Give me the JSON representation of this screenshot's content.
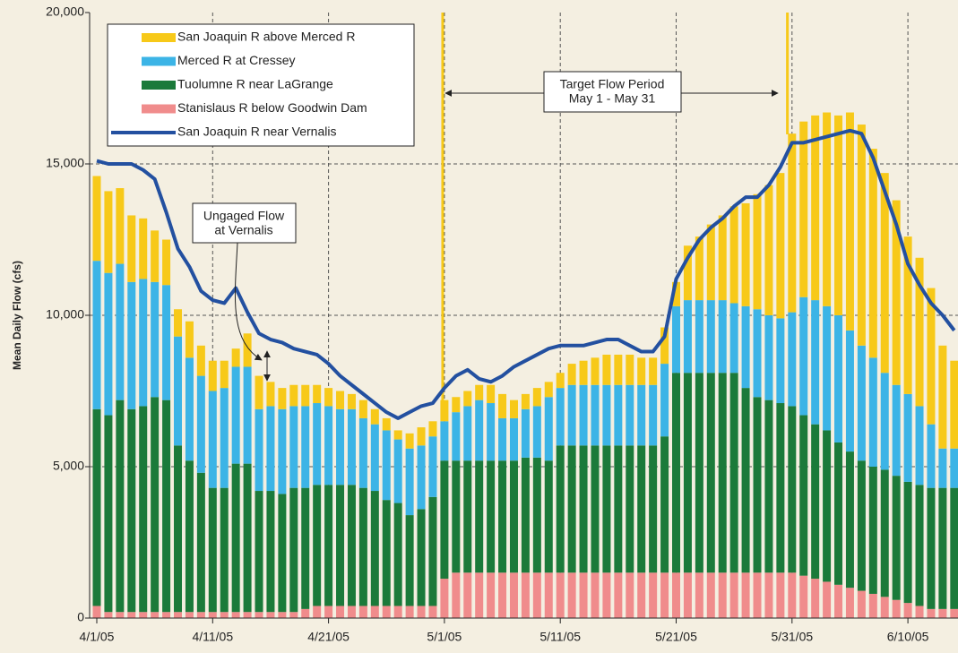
{
  "chart_data": {
    "type": "bar",
    "stacked": true,
    "y_label": "Mean Daily Flow (cfs)",
    "categories": [
      "4/1/05",
      null,
      null,
      null,
      null,
      null,
      null,
      null,
      null,
      null,
      "4/11/05",
      null,
      null,
      null,
      null,
      null,
      null,
      null,
      null,
      null,
      "4/21/05",
      null,
      null,
      null,
      null,
      null,
      null,
      null,
      null,
      null,
      "5/1/05",
      null,
      null,
      null,
      null,
      null,
      null,
      null,
      null,
      null,
      "5/11/05",
      null,
      null,
      null,
      null,
      null,
      null,
      null,
      null,
      null,
      "5/21/05",
      null,
      null,
      null,
      null,
      null,
      null,
      null,
      null,
      null,
      "5/31/05",
      null,
      null,
      null,
      null,
      null,
      null,
      null,
      null,
      null,
      "6/10/05",
      null,
      null,
      null,
      null
    ],
    "ylim": [
      0,
      20000
    ],
    "yticks": [
      0,
      {
        "value": 5000,
        "label": "5,000"
      },
      {
        "value": 10000,
        "label": "10,000"
      },
      {
        "value": 15000,
        "label": "15,000"
      },
      {
        "value": 20000,
        "label": "20,000"
      }
    ],
    "grid": true,
    "legend": "upper left",
    "series": [
      {
        "name": "San Joaquin R above Merced R",
        "color": "#f7c919",
        "values": [
          2800,
          2700,
          2500,
          2200,
          2000,
          1700,
          1500,
          900,
          1200,
          1000,
          1000,
          900,
          600,
          1100,
          1100,
          800,
          700,
          700,
          700,
          600,
          600,
          600,
          500,
          600,
          500,
          400,
          300,
          500,
          600,
          500,
          700,
          500,
          500,
          500,
          600,
          800,
          600,
          500,
          600,
          500,
          500,
          700,
          800,
          900,
          1000,
          1000,
          1000,
          900,
          900,
          1200,
          800,
          1800,
          2100,
          2500,
          2800,
          3200,
          3400,
          3800,
          4300,
          4800,
          5900,
          5800,
          6100,
          6400,
          6600,
          7200,
          7300,
          6900,
          6600,
          6100,
          5200,
          4900,
          4500,
          3400,
          2900
        ]
      },
      {
        "name": "Merced R at Cressey",
        "color": "#3cb4e6",
        "values": [
          4900,
          4700,
          4500,
          4200,
          4200,
          3800,
          3800,
          3600,
          3400,
          3200,
          3200,
          3300,
          3200,
          3200,
          2700,
          2800,
          2800,
          2700,
          2700,
          2700,
          2600,
          2500,
          2500,
          2300,
          2200,
          2300,
          2100,
          2200,
          2100,
          2000,
          1300,
          1600,
          1800,
          2000,
          1900,
          1400,
          1400,
          1600,
          1700,
          2100,
          1900,
          2000,
          2000,
          2000,
          2000,
          2000,
          2000,
          2000,
          2000,
          2400,
          2200,
          2400,
          2400,
          2400,
          2400,
          2300,
          2700,
          2900,
          2800,
          2800,
          3100,
          3900,
          4100,
          4100,
          4200,
          4000,
          3800,
          3600,
          3200,
          3000,
          2900,
          2600,
          2100,
          1300,
          1300
        ]
      },
      {
        "name": "Tuolumne R near LaGrange",
        "color": "#1b7a3a",
        "values": [
          6500,
          6500,
          7000,
          6700,
          6800,
          7100,
          7000,
          5500,
          5000,
          4600,
          4100,
          4100,
          4900,
          4900,
          4000,
          4000,
          3900,
          4100,
          4000,
          4000,
          4000,
          4000,
          4000,
          3900,
          3800,
          3500,
          3400,
          3000,
          3200,
          3600,
          3900,
          3700,
          3700,
          3700,
          3700,
          3700,
          3700,
          3800,
          3800,
          3700,
          4200,
          4200,
          4200,
          4200,
          4200,
          4200,
          4200,
          4200,
          4200,
          4500,
          6600,
          6600,
          6600,
          6600,
          6600,
          6600,
          6100,
          5800,
          5700,
          5600,
          5500,
          5300,
          5100,
          5000,
          4700,
          4500,
          4300,
          4200,
          4200,
          4100,
          4000,
          4000,
          4000,
          4000,
          4000
        ]
      },
      {
        "name": "Stanislaus R below Goodwin Dam",
        "color": "#f08c8c",
        "values": [
          400,
          200,
          200,
          200,
          200,
          200,
          200,
          200,
          200,
          200,
          200,
          200,
          200,
          200,
          200,
          200,
          200,
          200,
          300,
          400,
          400,
          400,
          400,
          400,
          400,
          400,
          400,
          400,
          400,
          400,
          1300,
          1500,
          1500,
          1500,
          1500,
          1500,
          1500,
          1500,
          1500,
          1500,
          1500,
          1500,
          1500,
          1500,
          1500,
          1500,
          1500,
          1500,
          1500,
          1500,
          1500,
          1500,
          1500,
          1500,
          1500,
          1500,
          1500,
          1500,
          1500,
          1500,
          1500,
          1400,
          1300,
          1200,
          1100,
          1000,
          900,
          800,
          700,
          600,
          500,
          400,
          300,
          300,
          300
        ]
      },
      {
        "name": "San Joaquin R near Vernalis",
        "color": "#2350a0",
        "type": "line",
        "values": [
          15100,
          15000,
          15000,
          15000,
          14800,
          14500,
          13400,
          12200,
          11600,
          10800,
          10500,
          10400,
          10900,
          10100,
          9400,
          9200,
          9100,
          8900,
          8800,
          8700,
          8400,
          8000,
          7700,
          7400,
          7100,
          6800,
          6600,
          6800,
          7000,
          7100,
          7600,
          8000,
          8200,
          7900,
          7800,
          8000,
          8300,
          8500,
          8700,
          8900,
          9000,
          9000,
          9000,
          9100,
          9200,
          9200,
          9000,
          8800,
          8800,
          9300,
          11200,
          11900,
          12500,
          12900,
          13200,
          13600,
          13900,
          13900,
          14300,
          14900,
          15700,
          15700,
          15800,
          15900,
          16000,
          16100,
          16000,
          15200,
          14100,
          13000,
          11700,
          11000,
          10400,
          10000,
          9500
        ]
      }
    ],
    "annotations": [
      {
        "text": [
          "Ungaged Flow",
          "at Vernalis"
        ]
      },
      {
        "text": [
          "Target Flow Period",
          "May 1 - May 31"
        ]
      }
    ]
  }
}
